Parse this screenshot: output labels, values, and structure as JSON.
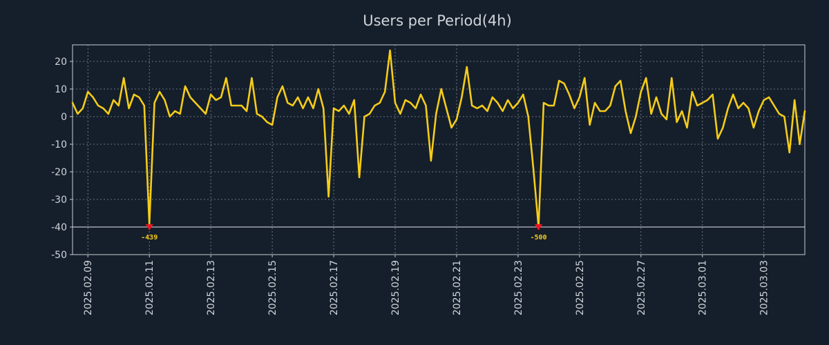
{
  "chart_data": {
    "type": "line",
    "title": "Users per Period(4h)",
    "xlabel": "",
    "ylabel": "",
    "ylim": [
      -50,
      26
    ],
    "yticks": [
      -50,
      -40,
      -30,
      -20,
      -10,
      0,
      10,
      20
    ],
    "x_start": "2025.02.08 12:00",
    "x_step_hours": 4,
    "xticks": [
      "2025.02.09",
      "2025.02.11",
      "2025.02.13",
      "2025.02.15",
      "2025.02.17",
      "2025.02.19",
      "2025.02.21",
      "2025.02.23",
      "2025.02.25",
      "2025.02.27",
      "2025.03.01",
      "2025.03.03"
    ],
    "xtick_index": [
      3,
      15,
      27,
      39,
      51,
      63,
      75,
      87,
      99,
      111,
      123,
      135
    ],
    "reference_line": -40,
    "series": [
      {
        "name": "Users",
        "color": "#f5cc1a",
        "values": [
          5,
          1,
          3,
          9,
          7,
          4,
          3,
          1,
          6,
          4,
          14,
          3,
          8,
          7,
          4,
          -39,
          5,
          9,
          6,
          0,
          2,
          1,
          11,
          7,
          5,
          3,
          1,
          8,
          6,
          7,
          14,
          4,
          4,
          4,
          2,
          14,
          1,
          0,
          -2,
          -3,
          7,
          11,
          5,
          4,
          7,
          3,
          7,
          3,
          10,
          3,
          -29,
          3,
          2,
          4,
          1,
          6,
          -22,
          0,
          1,
          4,
          5,
          9,
          24,
          5,
          1,
          6,
          5,
          3,
          8,
          4,
          -16,
          1,
          10,
          3,
          -4,
          -1,
          7,
          18,
          4,
          3,
          4,
          2,
          7,
          5,
          2,
          6,
          3,
          5,
          8,
          0,
          -19,
          -40,
          5,
          4,
          4,
          13,
          12,
          8,
          3,
          7,
          14,
          -3,
          5,
          2,
          2,
          4,
          11,
          13,
          2,
          -6,
          0,
          9,
          14,
          1,
          7,
          1,
          -1,
          14,
          -2,
          2,
          -4,
          9,
          4,
          5,
          6,
          8,
          -8,
          -4,
          3,
          8,
          3,
          5,
          3,
          -4,
          2,
          6,
          7,
          4,
          1,
          0,
          -13,
          6,
          -10,
          2
        ]
      }
    ],
    "annotations": [
      {
        "index": 15,
        "value": -40,
        "label": "-439"
      },
      {
        "index": 91,
        "value": -40,
        "label": "-500"
      }
    ],
    "grid": true,
    "legend": "none"
  }
}
